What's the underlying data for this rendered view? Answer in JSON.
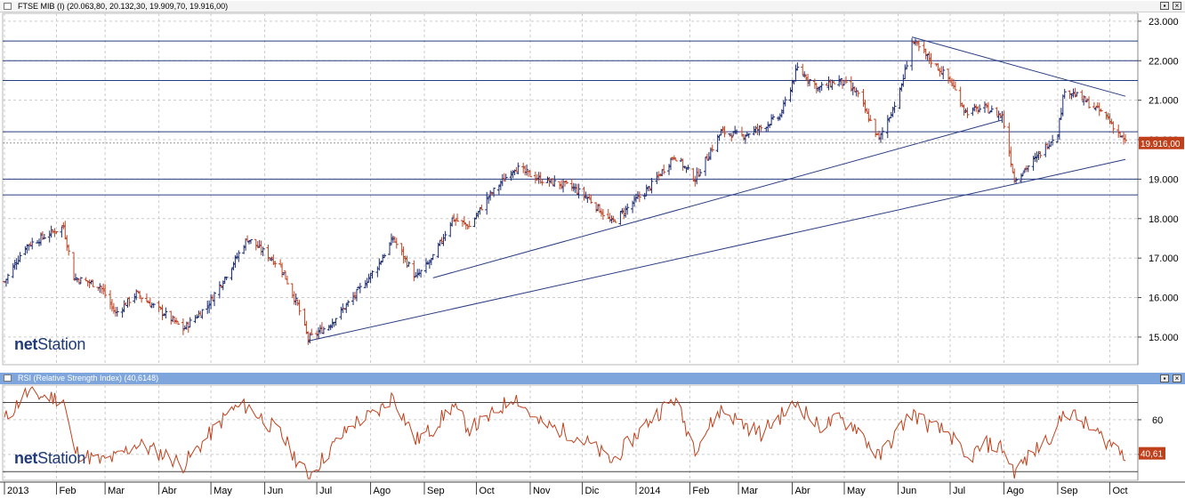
{
  "main_panel": {
    "title": "FTSE MIB (I) (20.063,80, 20.132,30, 19.909,70, 19.916,00)",
    "last_price_label": "19.916,00"
  },
  "rsi_panel": {
    "title": "RSI (Relative Strength Index) (40,6148)",
    "last_value_label": "40,61"
  },
  "logo": {
    "prefix": "net",
    "suffix": "Station"
  },
  "colors": {
    "bars": "#c04020",
    "bars_up": "#1a2a70",
    "lines": "#283c82",
    "rsi_line": "#c0401c",
    "rsi_header": "#7ea6dc",
    "label_bg": "#c0401c"
  },
  "chart_data": [
    {
      "type": "ohlc",
      "title": "FTSE MIB (I)",
      "y_range": [
        14300,
        23200
      ],
      "y_ticks": [
        "23.000",
        "22.000",
        "21.000",
        "20.000",
        "19.000",
        "18.000",
        "17.000",
        "16.000",
        "15.000"
      ],
      "x_ticks": [
        "2013",
        "Feb",
        "Mar",
        "Abr",
        "May",
        "Jun",
        "Jul",
        "Ago",
        "Sep",
        "Oct",
        "Nov",
        "Dic",
        "2014",
        "Feb",
        "Mar",
        "Abr",
        "May",
        "Jun",
        "Jul",
        "Ago",
        "Sep",
        "Oct"
      ],
      "x_range": [
        "2013-01-02",
        "2014-10-10"
      ],
      "close_anchors": [
        [
          "2013-01-02",
          16400
        ],
        [
          "2013-01-14",
          17300
        ],
        [
          "2013-02-05",
          17800
        ],
        [
          "2013-02-11",
          16500
        ],
        [
          "2013-02-26",
          16300
        ],
        [
          "2013-03-07",
          15600
        ],
        [
          "2013-03-19",
          16100
        ],
        [
          "2013-04-04",
          15600
        ],
        [
          "2013-04-15",
          15200
        ],
        [
          "2013-04-29",
          15800
        ],
        [
          "2013-05-13",
          16800
        ],
        [
          "2013-05-22",
          17500
        ],
        [
          "2013-06-10",
          16800
        ],
        [
          "2013-06-20",
          15800
        ],
        [
          "2013-06-26",
          14950
        ],
        [
          "2013-07-08",
          15300
        ],
        [
          "2013-07-22",
          16000
        ],
        [
          "2013-08-05",
          16800
        ],
        [
          "2013-08-14",
          17500
        ],
        [
          "2013-08-27",
          16500
        ],
        [
          "2013-09-06",
          17000
        ],
        [
          "2013-09-17",
          18000
        ],
        [
          "2013-09-27",
          17800
        ],
        [
          "2013-10-07",
          18500
        ],
        [
          "2013-10-23",
          19300
        ],
        [
          "2013-11-06",
          19000
        ],
        [
          "2013-11-25",
          18800
        ],
        [
          "2013-12-05",
          18500
        ],
        [
          "2013-12-18",
          17900
        ],
        [
          "2014-01-09",
          18800
        ],
        [
          "2014-01-23",
          19600
        ],
        [
          "2014-02-04",
          19000
        ],
        [
          "2014-02-19",
          20200
        ],
        [
          "2014-03-03",
          20100
        ],
        [
          "2014-03-14",
          20300
        ],
        [
          "2014-03-25",
          20600
        ],
        [
          "2014-04-04",
          21800
        ],
        [
          "2014-04-16",
          21300
        ],
        [
          "2014-04-28",
          21500
        ],
        [
          "2014-05-08",
          21200
        ],
        [
          "2014-05-21",
          20000
        ],
        [
          "2014-06-02",
          21200
        ],
        [
          "2014-06-09",
          22500
        ],
        [
          "2014-06-20",
          22000
        ],
        [
          "2014-07-01",
          21500
        ],
        [
          "2014-07-10",
          20700
        ],
        [
          "2014-07-21",
          20800
        ],
        [
          "2014-07-31",
          20600
        ],
        [
          "2014-08-07",
          19000
        ],
        [
          "2014-08-19",
          19500
        ],
        [
          "2014-09-01",
          20200
        ],
        [
          "2014-09-05",
          21300
        ],
        [
          "2014-09-16",
          21000
        ],
        [
          "2014-09-29",
          20600
        ],
        [
          "2014-10-10",
          19916
        ]
      ],
      "horizontal_levels": [
        22500,
        22000,
        21500,
        20200,
        19000,
        18600
      ],
      "trendlines": [
        {
          "from": [
            "2013-06-26",
            14900
          ],
          "to": [
            "2014-10-10",
            19500
          ]
        },
        {
          "from": [
            "2013-09-06",
            16500
          ],
          "to": [
            "2014-07-31",
            20500
          ]
        },
        {
          "from": [
            "2014-06-09",
            22600
          ],
          "to": [
            "2014-10-10",
            21100
          ]
        }
      ],
      "last_value": 19916
    },
    {
      "type": "line",
      "title": "RSI (Relative Strength Index)",
      "series_name": "RSI",
      "y_range": [
        25,
        80
      ],
      "y_ticks": [
        "60",
        "40"
      ],
      "levels": [
        70,
        30
      ],
      "anchors": [
        [
          "2013-01-02",
          60
        ],
        [
          "2013-01-14",
          75
        ],
        [
          "2013-02-05",
          72
        ],
        [
          "2013-02-11",
          42
        ],
        [
          "2013-02-26",
          36
        ],
        [
          "2013-03-07",
          38
        ],
        [
          "2013-03-19",
          46
        ],
        [
          "2013-04-04",
          40
        ],
        [
          "2013-04-15",
          34
        ],
        [
          "2013-04-29",
          50
        ],
        [
          "2013-05-13",
          66
        ],
        [
          "2013-05-22",
          68
        ],
        [
          "2013-06-10",
          52
        ],
        [
          "2013-06-20",
          36
        ],
        [
          "2013-06-26",
          27
        ],
        [
          "2013-07-08",
          42
        ],
        [
          "2013-07-22",
          58
        ],
        [
          "2013-08-05",
          64
        ],
        [
          "2013-08-14",
          74
        ],
        [
          "2013-08-27",
          48
        ],
        [
          "2013-09-06",
          55
        ],
        [
          "2013-09-17",
          68
        ],
        [
          "2013-09-27",
          55
        ],
        [
          "2013-10-07",
          60
        ],
        [
          "2013-10-23",
          74
        ],
        [
          "2013-11-06",
          58
        ],
        [
          "2013-11-25",
          52
        ],
        [
          "2013-12-05",
          46
        ],
        [
          "2013-12-18",
          36
        ],
        [
          "2014-01-09",
          60
        ],
        [
          "2014-01-23",
          72
        ],
        [
          "2014-02-04",
          44
        ],
        [
          "2014-02-19",
          66
        ],
        [
          "2014-03-03",
          58
        ],
        [
          "2014-03-14",
          52
        ],
        [
          "2014-03-25",
          62
        ],
        [
          "2014-04-04",
          70
        ],
        [
          "2014-04-16",
          56
        ],
        [
          "2014-04-28",
          60
        ],
        [
          "2014-05-08",
          56
        ],
        [
          "2014-05-21",
          38
        ],
        [
          "2014-06-02",
          55
        ],
        [
          "2014-06-09",
          64
        ],
        [
          "2014-06-20",
          56
        ],
        [
          "2014-07-01",
          52
        ],
        [
          "2014-07-10",
          36
        ],
        [
          "2014-07-21",
          46
        ],
        [
          "2014-07-31",
          44
        ],
        [
          "2014-08-07",
          30
        ],
        [
          "2014-08-19",
          42
        ],
        [
          "2014-09-01",
          55
        ],
        [
          "2014-09-05",
          66
        ],
        [
          "2014-09-16",
          58
        ],
        [
          "2014-09-29",
          48
        ],
        [
          "2014-10-10",
          40.6
        ]
      ],
      "last_value": 40.61
    }
  ]
}
